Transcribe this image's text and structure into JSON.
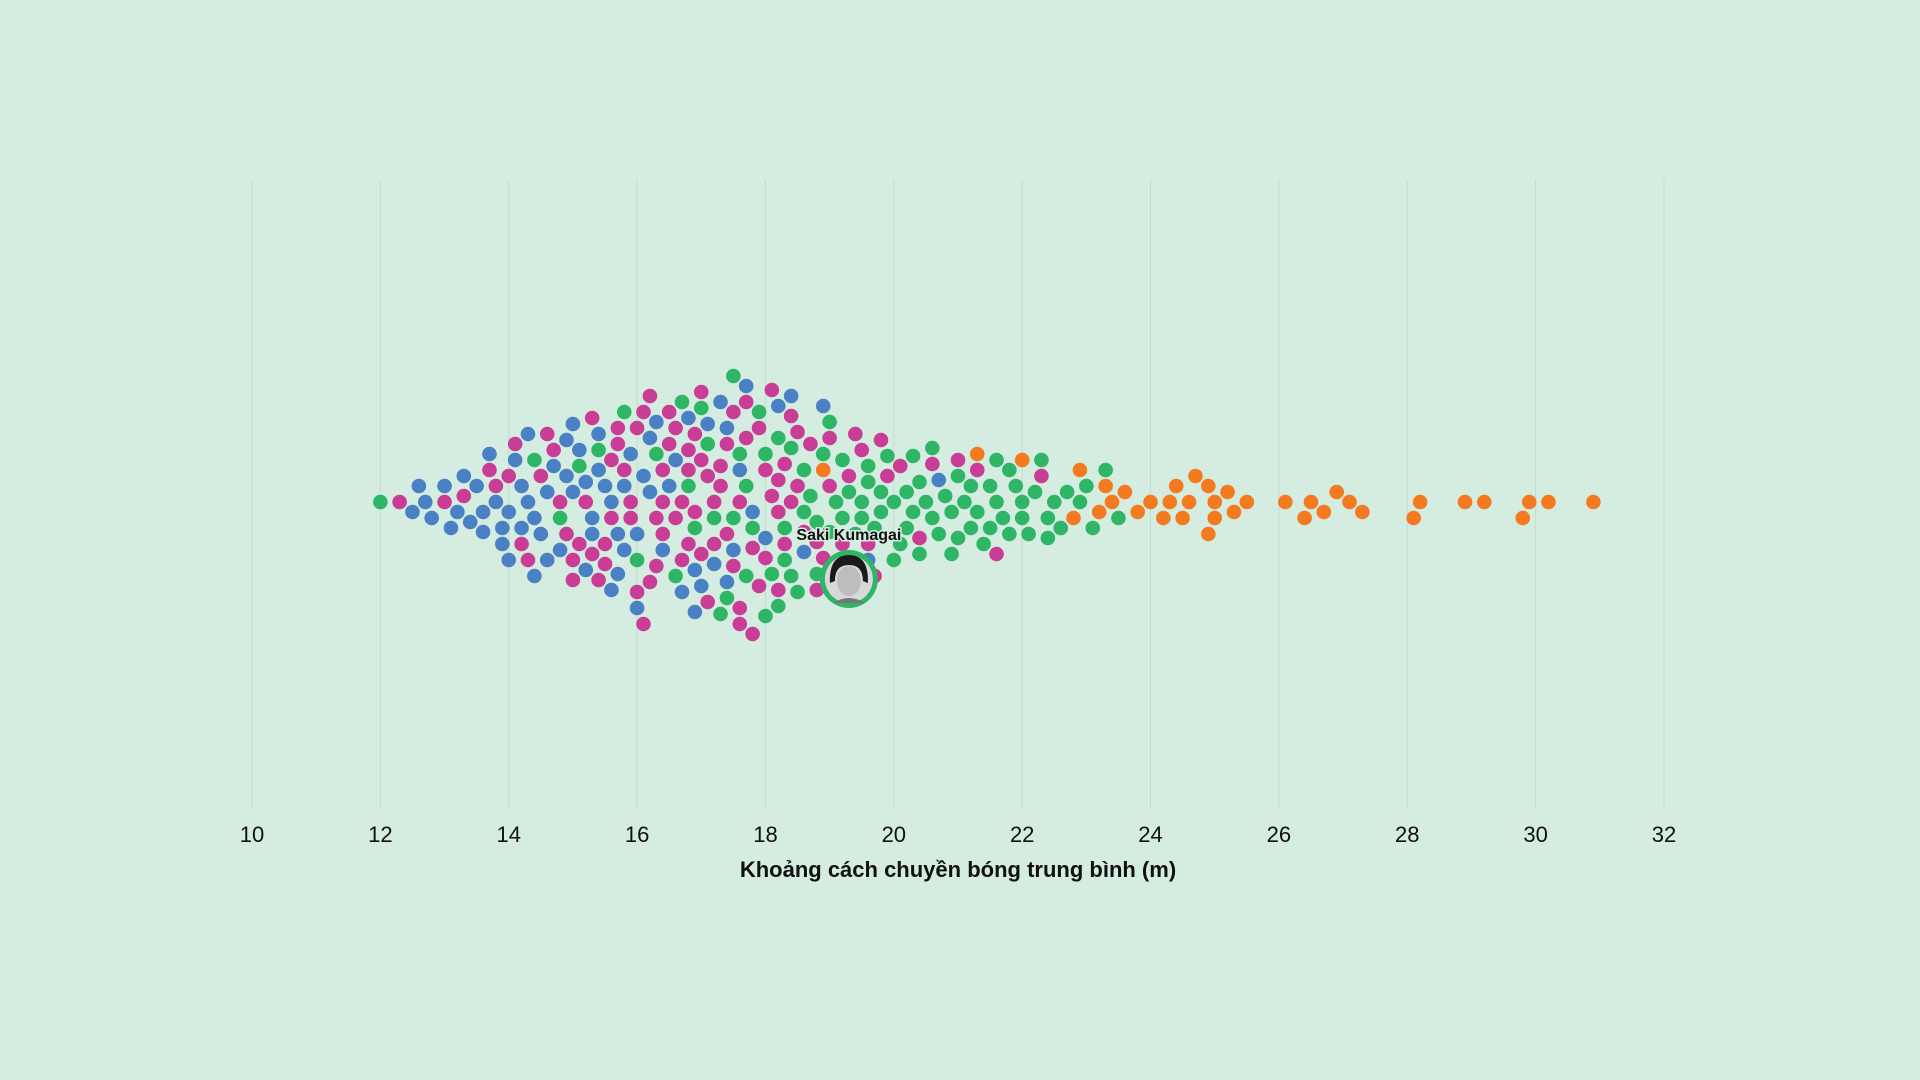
{
  "chart_data": {
    "type": "scatter",
    "subtype": "beeswarm",
    "title": "",
    "xlabel": "Khoảng cách chuyền bóng trung bình (m)",
    "ylabel": "",
    "xlim": [
      10,
      32
    ],
    "xticks": [
      "10",
      "12",
      "14",
      "16",
      "18",
      "20",
      "22",
      "24",
      "26",
      "28",
      "30",
      "32"
    ],
    "grid": true,
    "highlight": {
      "name": "Saki Kumagai",
      "value": 19.3,
      "group": "green"
    },
    "series": [
      {
        "name": "blue",
        "color": "#4a80c4",
        "values": [
          12.5,
          12.6,
          12.7,
          12.8,
          13.0,
          13.1,
          13.2,
          13.3,
          13.4,
          13.5,
          13.6,
          13.6,
          13.7,
          13.8,
          13.9,
          13.9,
          14.0,
          14.0,
          14.1,
          14.2,
          14.2,
          14.3,
          14.3,
          14.4,
          14.4,
          14.5,
          14.6,
          14.6,
          14.7,
          14.8,
          14.9,
          14.9,
          15.0,
          15.0,
          15.1,
          15.2,
          15.2,
          15.3,
          15.3,
          15.4,
          15.4,
          15.5,
          15.6,
          15.6,
          15.7,
          15.7,
          15.8,
          15.8,
          15.9,
          16.0,
          16.0,
          16.1,
          16.2,
          16.2,
          16.3,
          16.4,
          16.5,
          16.6,
          16.7,
          16.8,
          16.9,
          16.9,
          17.0,
          17.1,
          17.2,
          17.3,
          17.4,
          17.4,
          17.5,
          17.6,
          17.7,
          17.8,
          18.0,
          18.2,
          18.4,
          18.6,
          18.9,
          19.2,
          19.6,
          20.7
        ]
      },
      {
        "name": "pink",
        "color": "#c93d97",
        "values": [
          12.3,
          13.0,
          13.3,
          13.7,
          13.8,
          14.0,
          14.2,
          14.3,
          14.5,
          14.6,
          14.8,
          14.9,
          15.0,
          15.1,
          15.2,
          15.3,
          15.3,
          15.4,
          15.5,
          15.5,
          15.6,
          15.7,
          15.7,
          15.8,
          15.9,
          15.9,
          16.0,
          16.0,
          16.1,
          16.1,
          16.2,
          16.2,
          16.3,
          16.3,
          16.4,
          16.4,
          16.5,
          16.5,
          16.6,
          16.6,
          16.7,
          16.7,
          16.8,
          16.8,
          16.9,
          16.9,
          17.0,
          17.0,
          17.1,
          17.1,
          17.2,
          17.2,
          17.3,
          17.3,
          17.4,
          17.4,
          17.5,
          17.5,
          17.6,
          17.6,
          17.7,
          17.7,
          17.8,
          17.8,
          17.9,
          17.9,
          18.0,
          18.0,
          18.1,
          18.1,
          18.2,
          18.2,
          18.3,
          18.3,
          18.4,
          18.4,
          18.5,
          18.5,
          18.6,
          18.7,
          18.8,
          18.9,
          19.0,
          19.1,
          19.2,
          19.3,
          19.4,
          19.5,
          19.6,
          19.7,
          19.8,
          19.9,
          20.1,
          20.4,
          20.6,
          21.0,
          21.3,
          21.6,
          22.3,
          15.0,
          15.6,
          16.4,
          17.0,
          17.6,
          18.2,
          18.8,
          14.1,
          14.7,
          16.8,
          19.0
        ]
      },
      {
        "name": "green",
        "color": "#2eb566",
        "values": [
          12.0,
          14.4,
          14.8,
          15.1,
          15.4,
          15.8,
          16.0,
          16.3,
          16.6,
          16.8,
          16.9,
          17.0,
          17.1,
          17.2,
          17.3,
          17.4,
          17.5,
          17.6,
          17.7,
          17.7,
          17.8,
          17.9,
          18.0,
          18.0,
          18.1,
          18.2,
          18.2,
          18.3,
          18.4,
          18.4,
          18.5,
          18.6,
          18.6,
          18.7,
          18.8,
          18.8,
          18.9,
          19.0,
          19.0,
          19.1,
          19.2,
          19.2,
          19.3,
          19.4,
          19.4,
          19.5,
          19.6,
          19.6,
          19.7,
          19.8,
          19.8,
          19.9,
          20.0,
          20.0,
          20.1,
          20.2,
          20.2,
          20.3,
          20.4,
          20.4,
          20.5,
          20.6,
          20.6,
          20.7,
          20.8,
          20.9,
          21.0,
          21.0,
          21.1,
          21.2,
          21.3,
          21.4,
          21.5,
          21.6,
          21.7,
          21.8,
          21.9,
          22.0,
          22.1,
          22.2,
          22.3,
          22.4,
          22.5,
          22.7,
          22.9,
          23.1,
          23.3,
          23.5,
          21.2,
          21.8,
          22.4,
          20.3,
          19.5,
          18.3,
          17.5,
          16.7,
          21.5,
          22.0,
          22.6,
          23.0,
          20.9,
          21.6
        ]
      },
      {
        "name": "orange",
        "color": "#f47a20",
        "values": [
          18.9,
          19.3,
          21.3,
          22.0,
          22.8,
          22.9,
          23.3,
          23.4,
          23.6,
          23.8,
          24.0,
          24.2,
          24.3,
          24.4,
          24.5,
          24.7,
          24.9,
          24.9,
          25.0,
          25.0,
          25.2,
          25.5,
          26.1,
          26.4,
          26.5,
          26.7,
          26.9,
          27.1,
          27.3,
          28.1,
          28.2,
          28.9,
          29.2,
          29.8,
          29.9,
          30.2,
          30.9,
          23.2,
          24.6,
          25.3
        ]
      }
    ]
  }
}
